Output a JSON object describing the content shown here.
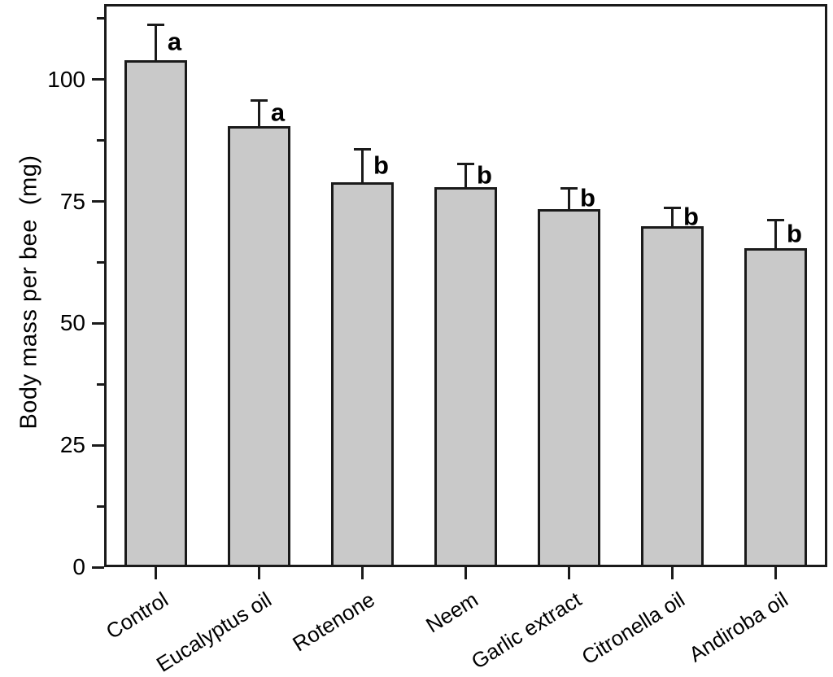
{
  "chart_data": {
    "type": "bar",
    "title": "",
    "xlabel": "",
    "ylabel": "Body mass per bee  (mg)",
    "categories": [
      "Control",
      "Eucalyptus oil",
      "Rotenone",
      "Neem",
      "Garlic extract",
      "Citronella oil",
      "Andiroba oil"
    ],
    "values": [
      104,
      90.5,
      79,
      78,
      73.5,
      70,
      65.5
    ],
    "error_bars_upper": [
      7.5,
      5.5,
      7,
      5,
      4.5,
      4,
      6
    ],
    "significance_letters": [
      "a",
      "a",
      "b",
      "b",
      "b",
      "b",
      "b"
    ],
    "ylim": [
      0,
      115.5
    ],
    "yticks_major": [
      0,
      25,
      50,
      75,
      100
    ],
    "ytick_labels": [
      "0",
      "25",
      "50",
      "75",
      "100"
    ],
    "yticks_minor": [
      12.5,
      37.5,
      62.5,
      87.5,
      112.5
    ],
    "grid": false,
    "legend_position": "none",
    "bar_color": "#c9c9c9",
    "bar_edge_color": "#1a1a1a",
    "axis_color": "#1a1a1a",
    "text_color": "#000000"
  }
}
